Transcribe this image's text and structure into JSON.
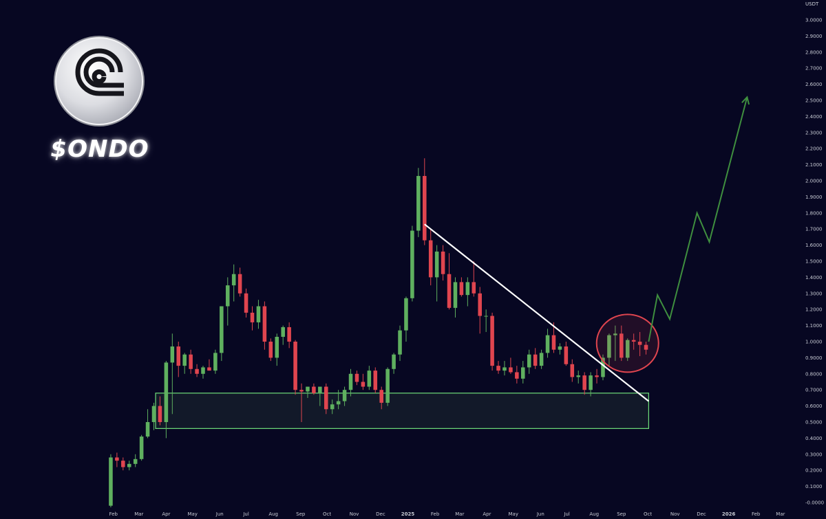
{
  "asset": {
    "ticker_label": "$ONDO",
    "quote_currency": "USDT"
  },
  "colors": {
    "background": "#070722",
    "bull": "#5fb05f",
    "bear": "#e0454f",
    "support_zone": "#6fe07a",
    "trendline": "#ffffff",
    "projection": "#3f8f3f",
    "highlight_circle": "#e0454f",
    "axis_text": "#c8cbd4"
  },
  "chart_data": {
    "type": "candlestick",
    "interval": "weekly",
    "y_axis": {
      "side": "right",
      "min": -0.0,
      "max": 3.0,
      "step": 0.1,
      "tick_labels": [
        "-0.0000",
        "0.1000",
        "0.2000",
        "0.3000",
        "0.4000",
        "0.5000",
        "0.6000",
        "0.7000",
        "0.8000",
        "0.9000",
        "1.0000",
        "1.1000",
        "1.2000",
        "1.3000",
        "1.4000",
        "1.5000",
        "1.6000",
        "1.7000",
        "1.8000",
        "1.9000",
        "2.0000",
        "2.1000",
        "2.2000",
        "2.3000",
        "2.4000",
        "2.5000",
        "2.6000",
        "2.7000",
        "2.8000",
        "2.9000",
        "3.0000"
      ]
    },
    "x_axis": {
      "start": "2024-01-22",
      "end": "2026-03-23",
      "tick_labels": [
        {
          "label": "Feb",
          "date": "2024-02-01"
        },
        {
          "label": "Mar",
          "date": "2024-03-01"
        },
        {
          "label": "Apr",
          "date": "2024-04-01"
        },
        {
          "label": "May",
          "date": "2024-05-01"
        },
        {
          "label": "Jun",
          "date": "2024-06-01"
        },
        {
          "label": "Jul",
          "date": "2024-07-01"
        },
        {
          "label": "Aug",
          "date": "2024-08-01"
        },
        {
          "label": "Sep",
          "date": "2024-09-01"
        },
        {
          "label": "Oct",
          "date": "2024-10-01"
        },
        {
          "label": "Nov",
          "date": "2024-11-01"
        },
        {
          "label": "Dec",
          "date": "2024-12-01"
        },
        {
          "label": "2025",
          "date": "2025-01-01",
          "bold": true
        },
        {
          "label": "Feb",
          "date": "2025-02-01"
        },
        {
          "label": "Mar",
          "date": "2025-03-01"
        },
        {
          "label": "Apr",
          "date": "2025-04-01"
        },
        {
          "label": "May",
          "date": "2025-05-01"
        },
        {
          "label": "Jun",
          "date": "2025-06-01"
        },
        {
          "label": "Jul",
          "date": "2025-07-01"
        },
        {
          "label": "Aug",
          "date": "2025-08-01"
        },
        {
          "label": "Sep",
          "date": "2025-09-01"
        },
        {
          "label": "Oct",
          "date": "2025-10-01"
        },
        {
          "label": "Nov",
          "date": "2025-11-01"
        },
        {
          "label": "Dec",
          "date": "2025-12-01"
        },
        {
          "label": "2026",
          "date": "2026-01-01",
          "bold": true
        },
        {
          "label": "Feb",
          "date": "2026-02-01"
        },
        {
          "label": "Mar",
          "date": "2026-03-01"
        }
      ]
    },
    "candles": [
      {
        "date": "2024-01-29",
        "o": -0.02,
        "h": 0.3,
        "l": -0.03,
        "c": 0.28
      },
      {
        "date": "2024-02-05",
        "o": 0.28,
        "h": 0.31,
        "l": 0.22,
        "c": 0.26
      },
      {
        "date": "2024-02-12",
        "o": 0.26,
        "h": 0.28,
        "l": 0.2,
        "c": 0.22
      },
      {
        "date": "2024-02-19",
        "o": 0.22,
        "h": 0.26,
        "l": 0.2,
        "c": 0.24
      },
      {
        "date": "2024-02-26",
        "o": 0.24,
        "h": 0.3,
        "l": 0.22,
        "c": 0.27
      },
      {
        "date": "2024-03-04",
        "o": 0.27,
        "h": 0.42,
        "l": 0.26,
        "c": 0.41
      },
      {
        "date": "2024-03-11",
        "o": 0.41,
        "h": 0.58,
        "l": 0.4,
        "c": 0.5
      },
      {
        "date": "2024-03-18",
        "o": 0.5,
        "h": 0.62,
        "l": 0.45,
        "c": 0.6
      },
      {
        "date": "2024-03-25",
        "o": 0.6,
        "h": 0.66,
        "l": 0.48,
        "c": 0.5
      },
      {
        "date": "2024-04-01",
        "o": 0.5,
        "h": 0.88,
        "l": 0.4,
        "c": 0.87
      },
      {
        "date": "2024-04-08",
        "o": 0.87,
        "h": 1.05,
        "l": 0.55,
        "c": 0.97
      },
      {
        "date": "2024-04-15",
        "o": 0.97,
        "h": 1.0,
        "l": 0.78,
        "c": 0.85
      },
      {
        "date": "2024-04-22",
        "o": 0.85,
        "h": 0.93,
        "l": 0.8,
        "c": 0.92
      },
      {
        "date": "2024-04-29",
        "o": 0.92,
        "h": 0.95,
        "l": 0.8,
        "c": 0.83
      },
      {
        "date": "2024-05-06",
        "o": 0.83,
        "h": 0.86,
        "l": 0.78,
        "c": 0.8
      },
      {
        "date": "2024-05-13",
        "o": 0.8,
        "h": 0.85,
        "l": 0.77,
        "c": 0.84
      },
      {
        "date": "2024-05-20",
        "o": 0.84,
        "h": 0.89,
        "l": 0.82,
        "c": 0.82
      },
      {
        "date": "2024-05-27",
        "o": 0.82,
        "h": 0.95,
        "l": 0.8,
        "c": 0.93
      },
      {
        "date": "2024-06-03",
        "o": 0.93,
        "h": 1.22,
        "l": 0.88,
        "c": 1.22
      },
      {
        "date": "2024-06-10",
        "o": 1.22,
        "h": 1.4,
        "l": 1.1,
        "c": 1.35
      },
      {
        "date": "2024-06-17",
        "o": 1.35,
        "h": 1.48,
        "l": 1.25,
        "c": 1.42
      },
      {
        "date": "2024-06-24",
        "o": 1.42,
        "h": 1.46,
        "l": 1.28,
        "c": 1.3
      },
      {
        "date": "2024-07-01",
        "o": 1.3,
        "h": 1.33,
        "l": 1.15,
        "c": 1.18
      },
      {
        "date": "2024-07-08",
        "o": 1.18,
        "h": 1.22,
        "l": 1.07,
        "c": 1.12
      },
      {
        "date": "2024-07-15",
        "o": 1.12,
        "h": 1.26,
        "l": 1.08,
        "c": 1.22
      },
      {
        "date": "2024-07-22",
        "o": 1.22,
        "h": 1.25,
        "l": 0.95,
        "c": 1.0
      },
      {
        "date": "2024-07-29",
        "o": 1.0,
        "h": 1.02,
        "l": 0.88,
        "c": 0.9
      },
      {
        "date": "2024-08-05",
        "o": 0.9,
        "h": 1.05,
        "l": 0.85,
        "c": 1.03
      },
      {
        "date": "2024-08-12",
        "o": 1.03,
        "h": 1.1,
        "l": 0.98,
        "c": 1.09
      },
      {
        "date": "2024-08-19",
        "o": 1.09,
        "h": 1.12,
        "l": 0.96,
        "c": 1.0
      },
      {
        "date": "2024-08-26",
        "o": 1.0,
        "h": 1.01,
        "l": 0.67,
        "c": 0.7
      },
      {
        "date": "2024-09-02",
        "o": 0.7,
        "h": 0.74,
        "l": 0.5,
        "c": 0.69
      },
      {
        "date": "2024-09-09",
        "o": 0.69,
        "h": 0.72,
        "l": 0.65,
        "c": 0.72
      },
      {
        "date": "2024-09-16",
        "o": 0.72,
        "h": 0.74,
        "l": 0.67,
        "c": 0.68
      },
      {
        "date": "2024-09-23",
        "o": 0.68,
        "h": 0.7,
        "l": 0.6,
        "c": 0.72
      },
      {
        "date": "2024-09-30",
        "o": 0.72,
        "h": 0.74,
        "l": 0.55,
        "c": 0.58
      },
      {
        "date": "2024-10-07",
        "o": 0.58,
        "h": 0.64,
        "l": 0.55,
        "c": 0.61
      },
      {
        "date": "2024-10-14",
        "o": 0.61,
        "h": 0.7,
        "l": 0.58,
        "c": 0.63
      },
      {
        "date": "2024-10-21",
        "o": 0.63,
        "h": 0.72,
        "l": 0.6,
        "c": 0.7
      },
      {
        "date": "2024-10-28",
        "o": 0.7,
        "h": 0.83,
        "l": 0.66,
        "c": 0.8
      },
      {
        "date": "2024-11-04",
        "o": 0.8,
        "h": 0.82,
        "l": 0.73,
        "c": 0.75
      },
      {
        "date": "2024-11-11",
        "o": 0.75,
        "h": 0.8,
        "l": 0.7,
        "c": 0.72
      },
      {
        "date": "2024-11-18",
        "o": 0.72,
        "h": 0.85,
        "l": 0.7,
        "c": 0.82
      },
      {
        "date": "2024-11-25",
        "o": 0.82,
        "h": 0.84,
        "l": 0.68,
        "c": 0.7
      },
      {
        "date": "2024-12-02",
        "o": 0.7,
        "h": 0.72,
        "l": 0.58,
        "c": 0.62
      },
      {
        "date": "2024-12-09",
        "o": 0.62,
        "h": 0.84,
        "l": 0.6,
        "c": 0.83
      },
      {
        "date": "2024-12-16",
        "o": 0.83,
        "h": 0.93,
        "l": 0.8,
        "c": 0.92
      },
      {
        "date": "2024-12-23",
        "o": 0.92,
        "h": 1.1,
        "l": 0.88,
        "c": 1.07
      },
      {
        "date": "2024-12-30",
        "o": 1.07,
        "h": 1.28,
        "l": 1.0,
        "c": 1.27
      },
      {
        "date": "2025-01-06",
        "o": 1.27,
        "h": 1.72,
        "l": 1.25,
        "c": 1.69
      },
      {
        "date": "2025-01-13",
        "o": 1.69,
        "h": 2.08,
        "l": 1.65,
        "c": 2.03
      },
      {
        "date": "2025-01-20",
        "o": 2.03,
        "h": 2.14,
        "l": 1.6,
        "c": 1.63
      },
      {
        "date": "2025-01-27",
        "o": 1.63,
        "h": 1.7,
        "l": 1.35,
        "c": 1.4
      },
      {
        "date": "2025-02-03",
        "o": 1.4,
        "h": 1.6,
        "l": 1.25,
        "c": 1.56
      },
      {
        "date": "2025-02-10",
        "o": 1.56,
        "h": 1.6,
        "l": 1.38,
        "c": 1.42
      },
      {
        "date": "2025-02-17",
        "o": 1.42,
        "h": 1.55,
        "l": 1.2,
        "c": 1.21
      },
      {
        "date": "2025-02-24",
        "o": 1.21,
        "h": 1.4,
        "l": 1.15,
        "c": 1.37
      },
      {
        "date": "2025-03-03",
        "o": 1.37,
        "h": 1.4,
        "l": 1.28,
        "c": 1.29
      },
      {
        "date": "2025-03-10",
        "o": 1.29,
        "h": 1.4,
        "l": 1.22,
        "c": 1.37
      },
      {
        "date": "2025-03-17",
        "o": 1.37,
        "h": 1.5,
        "l": 1.28,
        "c": 1.3
      },
      {
        "date": "2025-03-24",
        "o": 1.3,
        "h": 1.34,
        "l": 1.05,
        "c": 1.16
      },
      {
        "date": "2025-03-31",
        "o": 1.16,
        "h": 1.2,
        "l": 1.06,
        "c": 1.16
      },
      {
        "date": "2025-04-07",
        "o": 1.16,
        "h": 1.18,
        "l": 0.82,
        "c": 0.85
      },
      {
        "date": "2025-04-14",
        "o": 0.85,
        "h": 0.88,
        "l": 0.8,
        "c": 0.82
      },
      {
        "date": "2025-04-21",
        "o": 0.82,
        "h": 0.88,
        "l": 0.79,
        "c": 0.84
      },
      {
        "date": "2025-04-28",
        "o": 0.84,
        "h": 0.9,
        "l": 0.8,
        "c": 0.81
      },
      {
        "date": "2025-05-05",
        "o": 0.81,
        "h": 0.85,
        "l": 0.74,
        "c": 0.77
      },
      {
        "date": "2025-05-12",
        "o": 0.77,
        "h": 0.88,
        "l": 0.74,
        "c": 0.84
      },
      {
        "date": "2025-05-19",
        "o": 0.84,
        "h": 0.95,
        "l": 0.8,
        "c": 0.92
      },
      {
        "date": "2025-05-26",
        "o": 0.92,
        "h": 0.96,
        "l": 0.83,
        "c": 0.85
      },
      {
        "date": "2025-06-02",
        "o": 0.85,
        "h": 0.95,
        "l": 0.83,
        "c": 0.93
      },
      {
        "date": "2025-06-09",
        "o": 0.93,
        "h": 1.08,
        "l": 0.9,
        "c": 1.04
      },
      {
        "date": "2025-06-16",
        "o": 1.04,
        "h": 1.12,
        "l": 0.93,
        "c": 0.95
      },
      {
        "date": "2025-06-23",
        "o": 0.95,
        "h": 0.99,
        "l": 0.92,
        "c": 0.97
      },
      {
        "date": "2025-06-30",
        "o": 0.97,
        "h": 1.0,
        "l": 0.85,
        "c": 0.86
      },
      {
        "date": "2025-07-07",
        "o": 0.86,
        "h": 0.89,
        "l": 0.75,
        "c": 0.78
      },
      {
        "date": "2025-07-14",
        "o": 0.78,
        "h": 0.82,
        "l": 0.74,
        "c": 0.79
      },
      {
        "date": "2025-07-21",
        "o": 0.79,
        "h": 0.81,
        "l": 0.67,
        "c": 0.7
      },
      {
        "date": "2025-07-28",
        "o": 0.7,
        "h": 0.81,
        "l": 0.66,
        "c": 0.79
      },
      {
        "date": "2025-08-04",
        "o": 0.79,
        "h": 0.83,
        "l": 0.74,
        "c": 0.78
      },
      {
        "date": "2025-08-11",
        "o": 0.78,
        "h": 0.92,
        "l": 0.76,
        "c": 0.9
      },
      {
        "date": "2025-08-18",
        "o": 0.9,
        "h": 1.05,
        "l": 0.85,
        "c": 1.04
      },
      {
        "date": "2025-08-25",
        "o": 1.04,
        "h": 1.1,
        "l": 0.88,
        "c": 1.05
      },
      {
        "date": "2025-09-01",
        "o": 1.05,
        "h": 1.1,
        "l": 0.88,
        "c": 0.9
      },
      {
        "date": "2025-09-08",
        "o": 0.9,
        "h": 1.02,
        "l": 0.88,
        "c": 1.01
      },
      {
        "date": "2025-09-15",
        "o": 1.01,
        "h": 1.05,
        "l": 0.95,
        "c": 1.0
      },
      {
        "date": "2025-09-22",
        "o": 1.0,
        "h": 1.06,
        "l": 0.91,
        "c": 0.98
      },
      {
        "date": "2025-09-29",
        "o": 0.98,
        "h": 1.0,
        "l": 0.92,
        "c": 0.95
      }
    ],
    "support_zone": {
      "start": "2024-03-20",
      "end": "2025-10-02",
      "low": 0.46,
      "high": 0.68
    },
    "trendline": {
      "start": {
        "date": "2025-01-20",
        "price": 1.73
      },
      "end": {
        "date": "2025-10-02",
        "price": 0.63
      }
    },
    "highlight": {
      "center": {
        "date": "2025-09-08",
        "price": 0.99
      }
    },
    "projection": [
      {
        "date": "2025-10-02",
        "price": 1.0
      },
      {
        "date": "2025-10-12",
        "price": 1.29
      },
      {
        "date": "2025-10-26",
        "price": 1.14
      },
      {
        "date": "2025-11-26",
        "price": 1.8
      },
      {
        "date": "2025-12-10",
        "price": 1.62
      },
      {
        "date": "2026-01-22",
        "price": 2.52
      }
    ]
  }
}
